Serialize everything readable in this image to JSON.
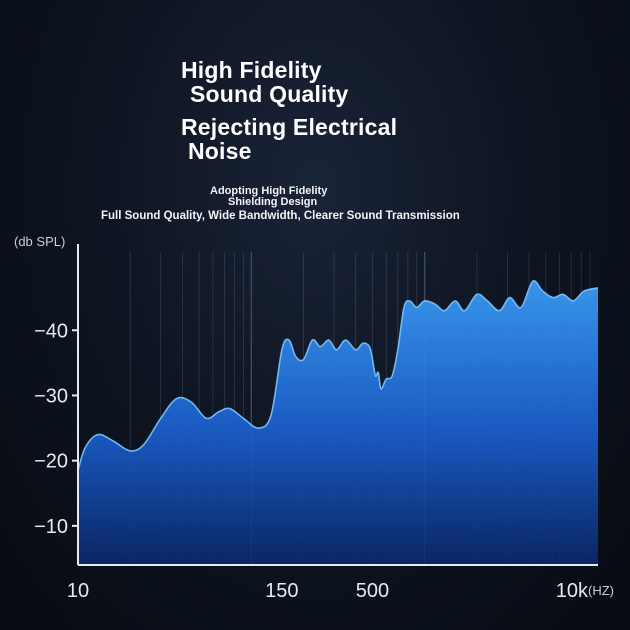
{
  "headline": {
    "line1": "High Fidelity",
    "line2": "Sound Quality",
    "line3": "Rejecting Electrical",
    "line4": "Noise"
  },
  "subtext": {
    "line1": "Adopting High Fidelity",
    "line2": "Shielding Design",
    "line3": "Full Sound Quality, Wide Bandwidth, Clearer Sound Transmission"
  },
  "colors": {
    "area_top": "#3a9cf5",
    "area_bottom": "#0a2a70",
    "curve": "#7cc4ff",
    "grid": "#6f7d96",
    "axis": "#e6e9ef"
  },
  "chart_data": {
    "type": "area",
    "ylabel": "(db SPL)",
    "xlabel": "(HZ)",
    "ylim": [
      4,
      52
    ],
    "yticks": [
      10,
      20,
      30,
      40
    ],
    "ytick_labels": [
      "−10",
      "−20",
      "−30",
      "−40"
    ],
    "xticks": [
      10,
      150,
      500,
      10000
    ],
    "xtick_labels": [
      "10",
      "150",
      "500",
      "10k"
    ],
    "x_scale": "log",
    "xlim": [
      10,
      10000
    ],
    "grid": true,
    "x": [
      10,
      11,
      13,
      16,
      20,
      24,
      30,
      37,
      45,
      55,
      65,
      75,
      90,
      110,
      130,
      150,
      165,
      180,
      200,
      225,
      250,
      280,
      310,
      350,
      400,
      440,
      480,
      500,
      520,
      540,
      560,
      600,
      650,
      700,
      760,
      820,
      900,
      1000,
      1150,
      1300,
      1500,
      1700,
      2000,
      2300,
      2700,
      3100,
      3600,
      4200,
      4800,
      5500,
      6300,
      7200,
      8300,
      10000
    ],
    "values": [
      18.5,
      22,
      24,
      23,
      21.5,
      22.5,
      26.5,
      29.5,
      29,
      26.5,
      27.5,
      28,
      26.5,
      25,
      27,
      37,
      38.5,
      36,
      35.5,
      38.5,
      37.5,
      38.5,
      37,
      38.5,
      37,
      38,
      37.5,
      35.5,
      33,
      33.5,
      31,
      32.5,
      33,
      37,
      43.5,
      44.5,
      43.5,
      44.5,
      44,
      43,
      44.5,
      43,
      45.5,
      44.5,
      43,
      45,
      43.5,
      47.5,
      46,
      45,
      45.5,
      44.5,
      46,
      46.5
    ]
  }
}
